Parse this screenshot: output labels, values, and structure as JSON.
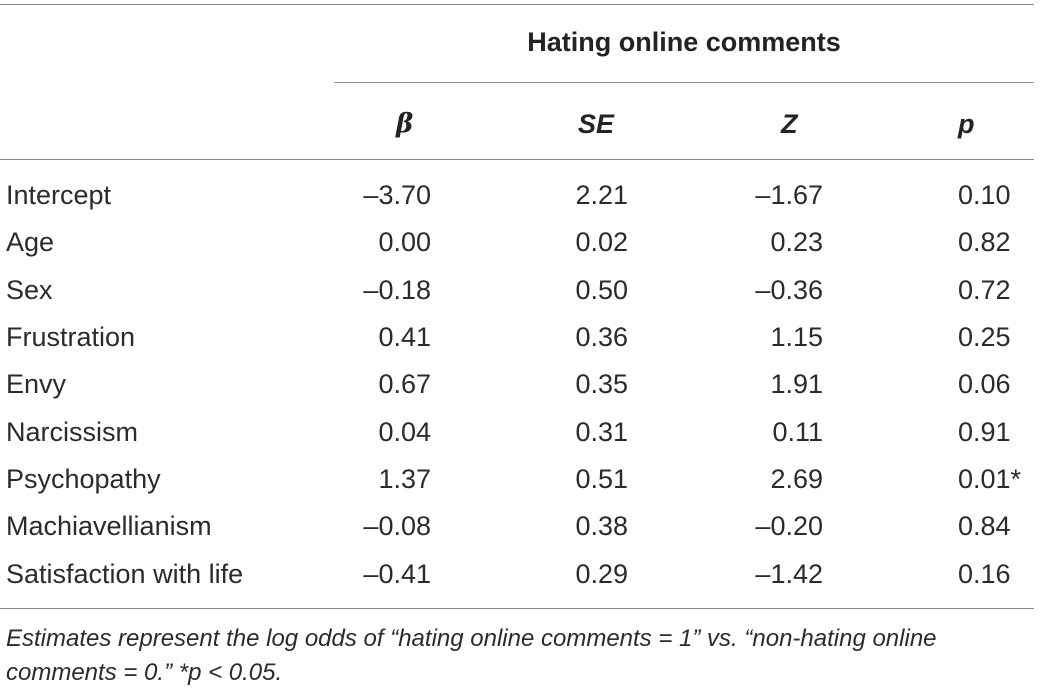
{
  "table": {
    "group_header": "Hating online comments",
    "columns": [
      "β",
      "SE",
      "Z",
      "p"
    ],
    "rows": [
      {
        "label": "Intercept",
        "beta": "–3.70",
        "se": "2.21",
        "z": "–1.67",
        "p": "0.10"
      },
      {
        "label": "Age",
        "beta": "0.00",
        "se": "0.02",
        "z": "0.23",
        "p": "0.82"
      },
      {
        "label": "Sex",
        "beta": "–0.18",
        "se": "0.50",
        "z": "–0.36",
        "p": "0.72"
      },
      {
        "label": "Frustration",
        "beta": "0.41",
        "se": "0.36",
        "z": "1.15",
        "p": "0.25"
      },
      {
        "label": "Envy",
        "beta": "0.67",
        "se": "0.35",
        "z": "1.91",
        "p": "0.06"
      },
      {
        "label": "Narcissism",
        "beta": "0.04",
        "se": "0.31",
        "z": "0.11",
        "p": "0.91"
      },
      {
        "label": "Psychopathy",
        "beta": "1.37",
        "se": "0.51",
        "z": "2.69",
        "p": "0.01*"
      },
      {
        "label": "Machiavellianism",
        "beta": "–0.08",
        "se": "0.38",
        "z": "–0.20",
        "p": "0.84"
      },
      {
        "label": "Satisfaction with life",
        "beta": "–0.41",
        "se": "0.29",
        "z": "–1.42",
        "p": "0.16"
      }
    ],
    "footnote": "Estimates represent the log odds of “hating online comments = 1” vs. “non-hating online comments = 0.” *p < 0.05."
  }
}
